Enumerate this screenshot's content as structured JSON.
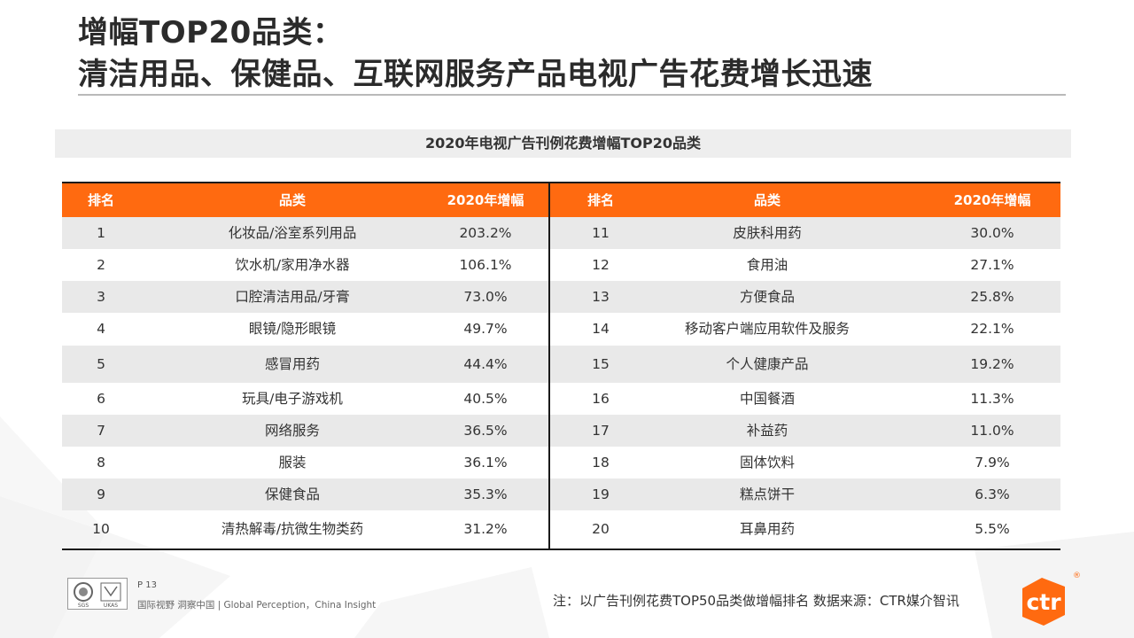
{
  "title_line1": "增幅TOP20品类：",
  "title_line2": "清洁用品、保健品、互联网服务产品电视广告花费增长迅速",
  "table_caption": "2020年电视广告刊例花费增幅TOP20品类",
  "headers": {
    "rank": "排名",
    "category": "品类",
    "growth": "2020年增幅"
  },
  "rows": [
    {
      "rank": "1",
      "category": "化妆品/浴室系列用品",
      "growth": "203.2%"
    },
    {
      "rank": "2",
      "category": "饮水机/家用净水器",
      "growth": "106.1%"
    },
    {
      "rank": "3",
      "category": "口腔清洁用品/牙膏",
      "growth": "73.0%"
    },
    {
      "rank": "4",
      "category": "眼镜/隐形眼镜",
      "growth": "49.7%"
    },
    {
      "rank": "5",
      "category": "感冒用药",
      "growth": "44.4%"
    },
    {
      "rank": "6",
      "category": "玩具/电子游戏机",
      "growth": "40.5%"
    },
    {
      "rank": "7",
      "category": "网络服务",
      "growth": "36.5%"
    },
    {
      "rank": "8",
      "category": "服装",
      "growth": "36.1%"
    },
    {
      "rank": "9",
      "category": "保健食品",
      "growth": "35.3%"
    },
    {
      "rank": "10",
      "category": "清热解毒/抗微生物类药",
      "growth": "31.2%"
    },
    {
      "rank": "11",
      "category": "皮肤科用药",
      "growth": "30.0%"
    },
    {
      "rank": "12",
      "category": "食用油",
      "growth": "27.1%"
    },
    {
      "rank": "13",
      "category": "方便食品",
      "growth": "25.8%"
    },
    {
      "rank": "14",
      "category": "移动客户端应用软件及服务",
      "growth": "22.1%"
    },
    {
      "rank": "15",
      "category": "个人健康产品",
      "growth": "19.2%"
    },
    {
      "rank": "16",
      "category": "中国餐酒",
      "growth": "11.3%"
    },
    {
      "rank": "17",
      "category": "补益药",
      "growth": "11.0%"
    },
    {
      "rank": "18",
      "category": "固体饮料",
      "growth": "7.9%"
    },
    {
      "rank": "19",
      "category": "糕点饼干",
      "growth": "6.3%"
    },
    {
      "rank": "20",
      "category": "耳鼻用药",
      "growth": "5.5%"
    }
  ],
  "footer": {
    "page_number": "P 13",
    "tagline": "国际视野  洞察中国 |  Global Perception，China Insight",
    "note": "注：以广告刊例花费TOP50品类做增幅排名  数据来源：CTR媒介智讯",
    "logo_text": "ctr",
    "logo_reg": "®",
    "cert_text_1": "SGS",
    "cert_text_2": "UKAS"
  },
  "colors": {
    "accent": "#ff6a10",
    "title": "#2b2b2b",
    "row_shade": "#e9e9e9"
  }
}
